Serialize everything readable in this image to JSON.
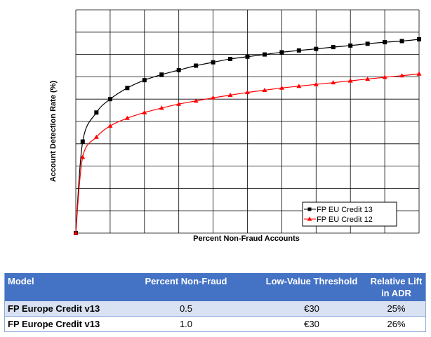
{
  "chart_data": {
    "type": "line",
    "xlabel": "Percent Non-Fraud Accounts",
    "ylabel": "Account Detection Rate (%)",
    "grid": true,
    "xlim": [
      0,
      100
    ],
    "ylim": [
      0,
      100
    ],
    "legend_position": "bottom-right",
    "series": [
      {
        "name": "FP EU Credit 13",
        "color": "#000000",
        "marker": "square",
        "x": [
          0,
          2,
          6,
          10,
          15,
          20,
          25,
          30,
          35,
          40,
          45,
          50,
          55,
          60,
          65,
          70,
          75,
          80,
          85,
          90,
          95,
          100
        ],
        "y": [
          0,
          41,
          54,
          60,
          65,
          68.5,
          71,
          73,
          75,
          76.5,
          78,
          79,
          80,
          81,
          81.8,
          82.5,
          83.3,
          84,
          84.8,
          85.5,
          86,
          86.8
        ]
      },
      {
        "name": "FP EU Credit 12",
        "color": "#ff0000",
        "marker": "triangle",
        "x": [
          0,
          2,
          6,
          10,
          15,
          20,
          25,
          30,
          35,
          40,
          45,
          50,
          55,
          60,
          65,
          70,
          75,
          80,
          85,
          90,
          95,
          100
        ],
        "y": [
          0,
          34,
          43,
          48,
          51.5,
          54,
          56,
          57.8,
          59.2,
          60.6,
          61.8,
          63,
          64,
          65,
          65.8,
          66.6,
          67.4,
          68.2,
          69,
          69.8,
          70.5,
          71.3
        ]
      }
    ]
  },
  "table": {
    "headers": [
      "Model",
      "Percent Non-Fraud",
      "Low-Value Threshold",
      "Relative Lift in ADR"
    ],
    "rows": [
      [
        "FP Europe Credit v13",
        "0.5",
        "€30",
        "25%"
      ],
      [
        "FP Europe Credit v13",
        "1.0",
        "€30",
        "26%"
      ]
    ]
  },
  "colors": {
    "header_bg": "#4472c4",
    "row_band": "#d9e2f3",
    "grid": "#000000"
  }
}
